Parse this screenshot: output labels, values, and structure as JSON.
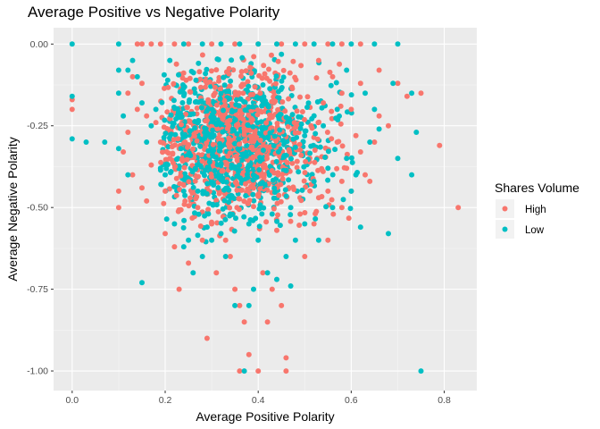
{
  "chart_data": {
    "type": "scatter",
    "title": "Average Positive vs Negative Polarity",
    "xlabel": "Average Positive Polarity",
    "ylabel": "Average Negative Polarity",
    "xlim": [
      -0.04,
      0.87
    ],
    "ylim": [
      -1.06,
      0.05
    ],
    "x_ticks": [
      0.0,
      0.2,
      0.4,
      0.6,
      0.8
    ],
    "x_tick_labels": [
      "0.0",
      "0.2",
      "0.4",
      "0.6",
      "0.8"
    ],
    "y_ticks": [
      0.0,
      -0.25,
      -0.5,
      -0.75,
      -1.0
    ],
    "y_tick_labels": [
      "0.00",
      "-0.25",
      "-0.50",
      "-0.75",
      "-1.00"
    ],
    "grid": true,
    "legend": {
      "title": "Shares Volume",
      "placement": "right",
      "entries": [
        {
          "name": "High",
          "color": "#F8766D"
        },
        {
          "name": "Low",
          "color": "#00BFC4"
        }
      ]
    },
    "series": [
      {
        "name": "High",
        "color": "#F8766D",
        "points": [
          [
            0.0,
            -0.2
          ],
          [
            0.0,
            -0.17
          ],
          [
            0.1,
            -0.45
          ],
          [
            0.1,
            -0.5
          ],
          [
            0.11,
            -0.33
          ],
          [
            0.12,
            -0.27
          ],
          [
            0.13,
            -0.4
          ],
          [
            0.15,
            -0.44
          ],
          [
            0.16,
            -0.48
          ],
          [
            0.17,
            -0.37
          ],
          [
            0.2,
            -0.58
          ],
          [
            0.2,
            -0.45
          ],
          [
            0.22,
            -0.62
          ],
          [
            0.23,
            -0.75
          ],
          [
            0.25,
            -0.67
          ],
          [
            0.28,
            -0.6
          ],
          [
            0.29,
            -0.9
          ],
          [
            0.3,
            -0.55
          ],
          [
            0.31,
            -0.7
          ],
          [
            0.33,
            -0.6
          ],
          [
            0.34,
            -0.65
          ],
          [
            0.35,
            -0.75
          ],
          [
            0.36,
            -0.8
          ],
          [
            0.36,
            -1.0
          ],
          [
            0.37,
            -0.85
          ],
          [
            0.38,
            -0.95
          ],
          [
            0.4,
            -1.0
          ],
          [
            0.41,
            -0.7
          ],
          [
            0.42,
            -0.85
          ],
          [
            0.43,
            -0.75
          ],
          [
            0.45,
            -0.8
          ],
          [
            0.46,
            -0.96
          ],
          [
            0.46,
            -1.0
          ],
          [
            0.5,
            -0.65
          ],
          [
            0.52,
            -0.55
          ],
          [
            0.55,
            -0.6
          ],
          [
            0.58,
            -0.5
          ],
          [
            0.6,
            -0.45
          ],
          [
            0.62,
            -0.33
          ],
          [
            0.63,
            -0.4
          ],
          [
            0.65,
            -0.3
          ],
          [
            0.66,
            -0.22
          ],
          [
            0.68,
            -0.25
          ],
          [
            0.7,
            -0.12
          ],
          [
            0.72,
            -0.16
          ],
          [
            0.75,
            -0.15
          ],
          [
            0.79,
            -0.31
          ],
          [
            0.83,
            -0.5
          ],
          [
            0.6,
            -0.2
          ],
          [
            0.58,
            -0.15
          ],
          [
            0.56,
            -0.1
          ],
          [
            0.53,
            -0.05
          ],
          [
            0.14,
            0.0
          ],
          [
            0.15,
            0.0
          ],
          [
            0.17,
            0.0
          ],
          [
            0.19,
            0.0
          ],
          [
            0.22,
            0.0
          ],
          [
            0.25,
            0.0
          ],
          [
            0.3,
            0.0
          ],
          [
            0.35,
            0.0
          ],
          [
            0.4,
            0.0
          ],
          [
            0.45,
            0.0
          ],
          [
            0.5,
            0.0
          ],
          [
            0.55,
            0.0
          ],
          [
            0.58,
            0.0
          ],
          [
            0.62,
            0.0
          ],
          [
            0.54,
            -0.18
          ],
          [
            0.57,
            -0.3
          ],
          [
            0.59,
            -0.38
          ],
          [
            0.61,
            -0.28
          ],
          [
            0.64,
            -0.42
          ],
          [
            0.53,
            -0.47
          ],
          [
            0.49,
            -0.52
          ],
          [
            0.44,
            -0.57
          ],
          [
            0.27,
            -0.5
          ],
          [
            0.21,
            -0.35
          ],
          [
            0.19,
            -0.3
          ],
          [
            0.18,
            -0.24
          ],
          [
            0.16,
            -0.22
          ],
          [
            0.15,
            -0.12
          ],
          [
            0.13,
            -0.1
          ],
          [
            0.12,
            -0.15
          ],
          [
            0.14,
            -0.2
          ],
          [
            0.62,
            -0.12
          ],
          [
            0.66,
            -0.08
          ],
          [
            0.55,
            -0.45
          ],
          [
            0.58,
            -0.42
          ]
        ]
      },
      {
        "name": "Low",
        "color": "#00BFC4",
        "points": [
          [
            0.0,
            0.0
          ],
          [
            0.0,
            -0.16
          ],
          [
            0.0,
            -0.29
          ],
          [
            0.03,
            -0.3
          ],
          [
            0.07,
            -0.3
          ],
          [
            0.1,
            -0.08
          ],
          [
            0.1,
            -0.15
          ],
          [
            0.1,
            -0.32
          ],
          [
            0.11,
            -0.22
          ],
          [
            0.12,
            -0.4
          ],
          [
            0.13,
            -0.05
          ],
          [
            0.15,
            -0.73
          ],
          [
            0.16,
            -0.3
          ],
          [
            0.18,
            -0.2
          ],
          [
            0.2,
            -0.4
          ],
          [
            0.22,
            -0.55
          ],
          [
            0.24,
            -0.62
          ],
          [
            0.25,
            -0.6
          ],
          [
            0.26,
            -0.7
          ],
          [
            0.28,
            -0.65
          ],
          [
            0.3,
            -0.6
          ],
          [
            0.32,
            -0.58
          ],
          [
            0.33,
            -0.65
          ],
          [
            0.35,
            -0.8
          ],
          [
            0.37,
            -1.0
          ],
          [
            0.38,
            -0.8
          ],
          [
            0.39,
            -0.75
          ],
          [
            0.4,
            -0.6
          ],
          [
            0.42,
            -0.7
          ],
          [
            0.44,
            -0.72
          ],
          [
            0.46,
            -0.65
          ],
          [
            0.47,
            -0.74
          ],
          [
            0.48,
            -0.6
          ],
          [
            0.5,
            -0.55
          ],
          [
            0.53,
            -0.6
          ],
          [
            0.56,
            -0.5
          ],
          [
            0.6,
            -0.45
          ],
          [
            0.62,
            -0.56
          ],
          [
            0.64,
            -0.3
          ],
          [
            0.66,
            -0.26
          ],
          [
            0.68,
            -0.58
          ],
          [
            0.7,
            -0.35
          ],
          [
            0.73,
            -0.4
          ],
          [
            0.74,
            -0.27
          ],
          [
            0.75,
            -1.0
          ],
          [
            0.73,
            -0.15
          ],
          [
            0.69,
            -0.12
          ],
          [
            0.65,
            -0.2
          ],
          [
            0.7,
            0.0
          ],
          [
            0.65,
            0.0
          ],
          [
            0.6,
            0.0
          ],
          [
            0.56,
            0.0
          ],
          [
            0.52,
            0.0
          ],
          [
            0.48,
            0.0
          ],
          [
            0.44,
            0.0
          ],
          [
            0.4,
            0.0
          ],
          [
            0.36,
            0.0
          ],
          [
            0.32,
            0.0
          ],
          [
            0.28,
            0.0
          ],
          [
            0.24,
            0.0
          ],
          [
            0.1,
            0.0
          ],
          [
            0.21,
            -0.05
          ],
          [
            0.27,
            -0.45
          ],
          [
            0.54,
            -0.25
          ],
          [
            0.57,
            -0.2
          ],
          [
            0.59,
            -0.35
          ],
          [
            0.61,
            -0.4
          ],
          [
            0.52,
            -0.42
          ],
          [
            0.47,
            -0.5
          ],
          [
            0.43,
            -0.52
          ],
          [
            0.38,
            -0.55
          ],
          [
            0.34,
            -0.52
          ],
          [
            0.29,
            -0.56
          ],
          [
            0.24,
            -0.45
          ],
          [
            0.19,
            -0.38
          ],
          [
            0.17,
            -0.25
          ],
          [
            0.15,
            -0.18
          ],
          [
            0.14,
            -0.1
          ],
          [
            0.12,
            -0.08
          ],
          [
            0.59,
            -0.08
          ],
          [
            0.63,
            -0.15
          ],
          [
            0.55,
            -0.38
          ]
        ]
      }
    ],
    "cloud": {
      "x_center": 0.35,
      "x_spread": 0.12,
      "y_center": -0.3,
      "y_spread": 0.16,
      "count_per_series": 900
    }
  }
}
